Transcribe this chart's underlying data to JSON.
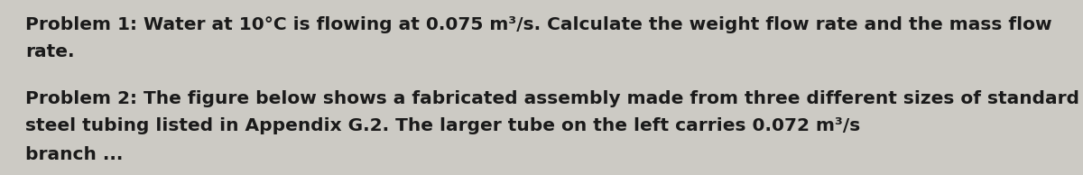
{
  "background_color": "#cccac4",
  "line1": "Problem 1: Water at 10°C is flowing at 0.075 m³/s. Calculate the weight flow rate and the mass flow",
  "line2": "rate.",
  "line3": "Problem 2: The figure below shows a fabricated assembly made from three different sizes of standard",
  "line4": "steel tubing listed in Appendix G.2. The larger tube on the left carries 0.072 m³/s",
  "line5": "branch ...",
  "text_color": "#1a1a1a",
  "font_size": 14.5,
  "fig_width": 12.0,
  "fig_height": 1.94,
  "dpi": 100
}
